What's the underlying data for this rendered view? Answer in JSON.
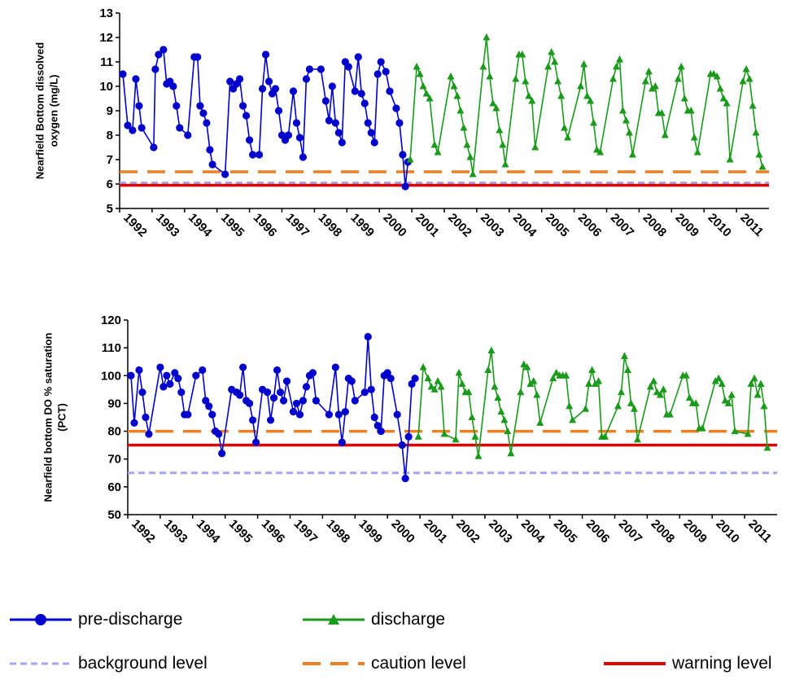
{
  "chart_data": [
    {
      "type": "line",
      "title": "",
      "ylabel": "Nearfield Bottom dissolved oxygen (mg/L)",
      "ylabel_lines": [
        "Nearfield Bottom dissolved",
        "oxygen (mg/L)"
      ],
      "ylim": [
        5,
        13
      ],
      "yticks": [
        5,
        6,
        7,
        8,
        9,
        10,
        11,
        12,
        13
      ],
      "xlim": [
        1992,
        2012
      ],
      "xticks": [
        "1992",
        "1993",
        "1994",
        "1995",
        "1996",
        "1997",
        "1998",
        "1999",
        "2000",
        "2001",
        "2002",
        "2003",
        "2004",
        "2005",
        "2006",
        "2007",
        "2008",
        "2009",
        "2010",
        "2011"
      ],
      "series": [
        {
          "name": "pre-discharge",
          "color": "#0000cc",
          "marker": "circle",
          "x": [
            1992.1,
            1992.25,
            1992.4,
            1992.5,
            1992.6,
            1992.68,
            1993.05,
            1993.1,
            1993.2,
            1993.35,
            1993.45,
            1993.55,
            1993.65,
            1993.75,
            1993.85,
            1994.1,
            1994.3,
            1994.4,
            1994.48,
            1994.58,
            1994.68,
            1994.78,
            1994.86,
            1995.25,
            1995.4,
            1995.5,
            1995.6,
            1995.7,
            1995.8,
            1995.9,
            1996.0,
            1996.1,
            1996.3,
            1996.4,
            1996.5,
            1996.6,
            1996.7,
            1996.8,
            1996.9,
            1997.0,
            1997.1,
            1997.2,
            1997.35,
            1997.45,
            1997.55,
            1997.65,
            1997.75,
            1997.85,
            1998.2,
            1998.35,
            1998.45,
            1998.55,
            1998.65,
            1998.75,
            1998.85,
            1998.95,
            1999.05,
            1999.25,
            1999.35,
            1999.45,
            1999.55,
            1999.65,
            1999.75,
            1999.85,
            1999.95,
            2000.2,
            2000.32,
            2000.52,
            2000.62,
            2000.72,
            2000.8
          ],
          "y": [
            10.5,
            8.4,
            8.2,
            10.3,
            9.2,
            8.3,
            7.5,
            10.7,
            11.3,
            11.5,
            10.1,
            10.2,
            10.0,
            9.2,
            8.3,
            8.0,
            11.2,
            11.2,
            9.2,
            8.9,
            8.5,
            7.4,
            6.8,
            6.4,
            10.2,
            9.9,
            10.1,
            10.3,
            9.2,
            8.8,
            7.8,
            7.2,
            7.2,
            9.9,
            11.3,
            10.2,
            9.7,
            9.9,
            9.0,
            8.0,
            7.8,
            8.0,
            9.8,
            8.5,
            7.9,
            7.1,
            10.3,
            10.7,
            10.7,
            9.4,
            8.6,
            10.0,
            8.5,
            8.1,
            7.7,
            11.0,
            10.8,
            9.8,
            11.2,
            9.7,
            9.3,
            8.5,
            8.1,
            7.7,
            10.5,
            11.0,
            10.6,
            9.8,
            9.1,
            8.5,
            7.2
          ],
          "note": "values read from plot"
        }
      ]
    }
  ],
  "legend": {
    "pre_discharge": "pre-discharge",
    "discharge": "discharge",
    "background": "background level",
    "caution": "caution level",
    "warning": "warning level"
  },
  "colors": {
    "pre": "#0000cc",
    "dis": "#1a9a1a",
    "background": "#a6a6f0",
    "caution": "#f07f20",
    "warning": "#e00000"
  }
}
